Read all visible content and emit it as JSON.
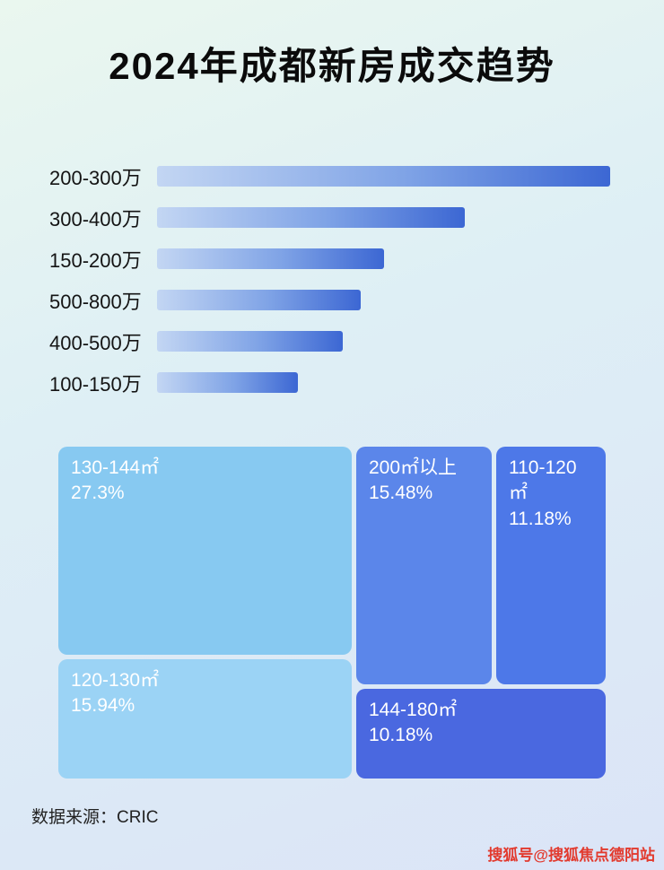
{
  "page": {
    "title": "2024年成都新房成交趋势",
    "source": "数据来源：CRIC",
    "watermark": "搜狐号@搜狐焦点德阳站"
  },
  "chart_data": [
    {
      "type": "bar",
      "orientation": "horizontal",
      "title": "2024年成都新房成交趋势",
      "categories": [
        "200-300万",
        "300-400万",
        "150-200万",
        "500-800万",
        "400-500万",
        "100-150万"
      ],
      "values": [
        100,
        68,
        50,
        45,
        41,
        31
      ],
      "value_axis_visible": false,
      "bar_gradient": [
        "#c3d6f3",
        "#3c67d3"
      ],
      "legend": "none",
      "grid": "off"
    },
    {
      "type": "treemap",
      "items": [
        {
          "label": "130-144㎡",
          "percent": "27.3%",
          "value": 27.3,
          "color": "#87c9f1"
        },
        {
          "label": "120-130㎡",
          "percent": "15.94%",
          "value": 15.94,
          "color": "#9bd3f5"
        },
        {
          "label": "200㎡以上",
          "percent": "15.48%",
          "value": 15.48,
          "color": "#5b86ea"
        },
        {
          "label": "110-120㎡",
          "percent": "11.18%",
          "value": 11.18,
          "color": "#4d78e8"
        },
        {
          "label": "144-180㎡",
          "percent": "10.18%",
          "value": 10.18,
          "color": "#4a68e0"
        }
      ]
    }
  ]
}
